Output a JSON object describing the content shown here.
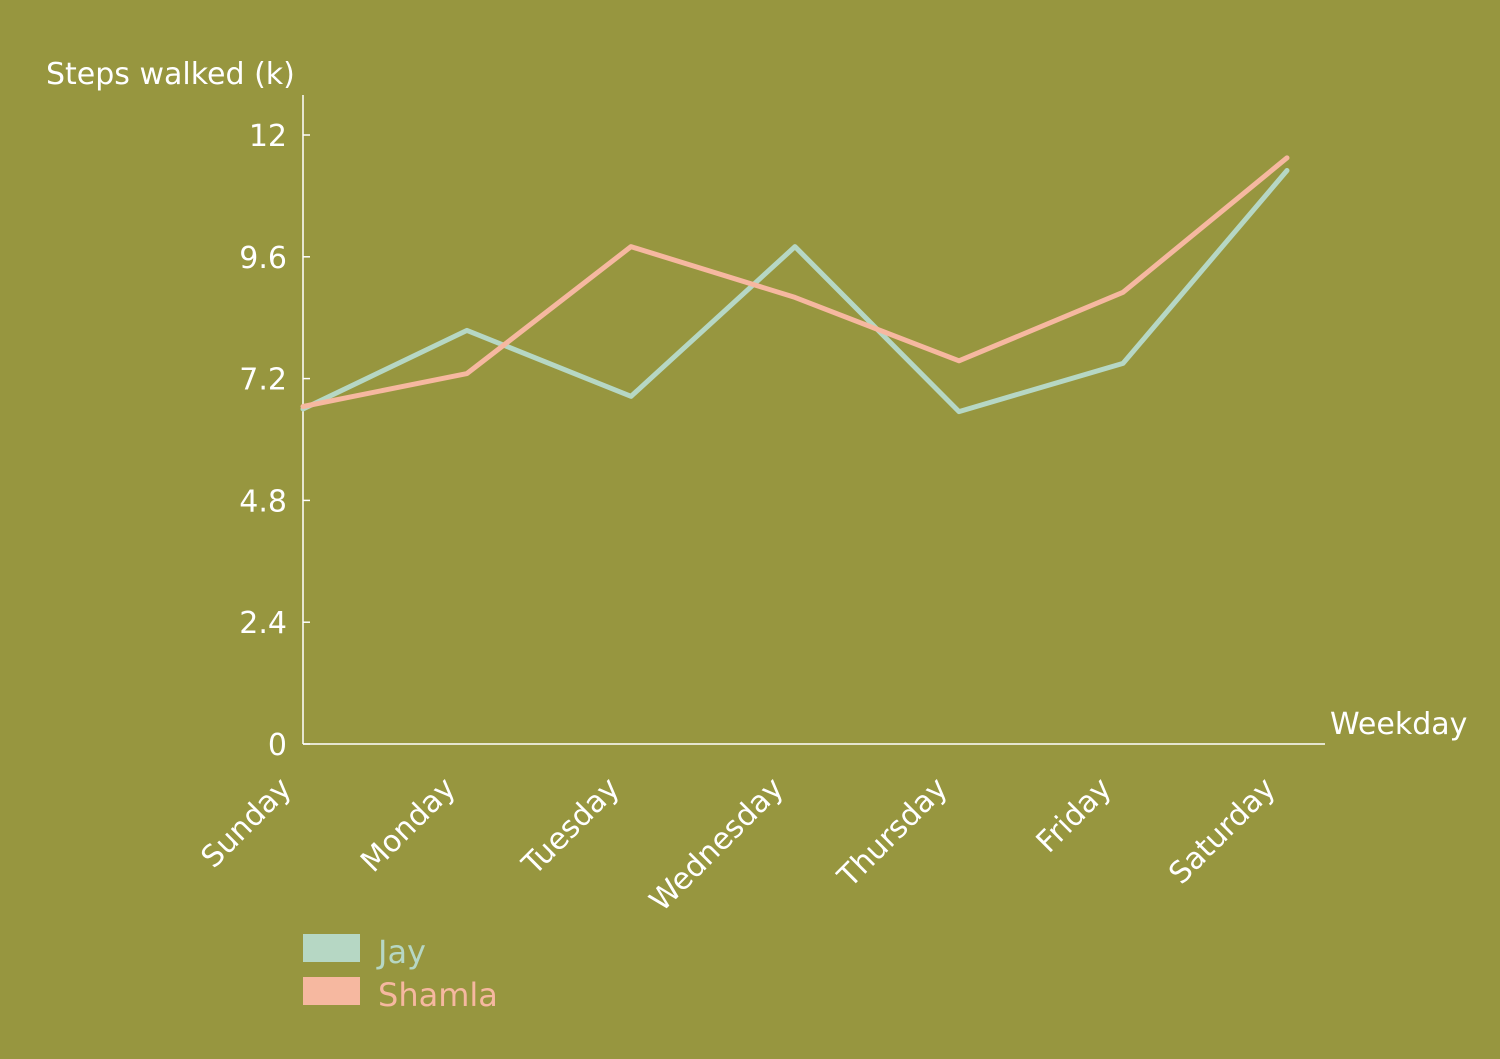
{
  "chart_data": {
    "type": "line",
    "categories": [
      "Sunday",
      "Monday",
      "Tuesday",
      "Wednesday",
      "Thursday",
      "Friday",
      "Saturday"
    ],
    "series": [
      {
        "name": "Jay",
        "color": "#b6d7c4",
        "values": [
          6.6,
          8.15,
          6.85,
          9.8,
          6.55,
          7.5,
          11.3
        ]
      },
      {
        "name": "Shamla",
        "color": "#f6b8a0",
        "values": [
          6.65,
          7.3,
          9.8,
          8.8,
          7.55,
          8.9,
          11.55
        ]
      }
    ],
    "ylabel": "Steps walked (k)",
    "xlabel": "Weekday",
    "ylim": [
      0,
      12
    ],
    "yticks": [
      "0",
      "2.4",
      "4.8",
      "7.2",
      "9.6",
      "12"
    ],
    "grid": false,
    "legend_position": "bottom-left",
    "colors": {
      "background": "#97963f",
      "axis": "#ffffff"
    }
  }
}
